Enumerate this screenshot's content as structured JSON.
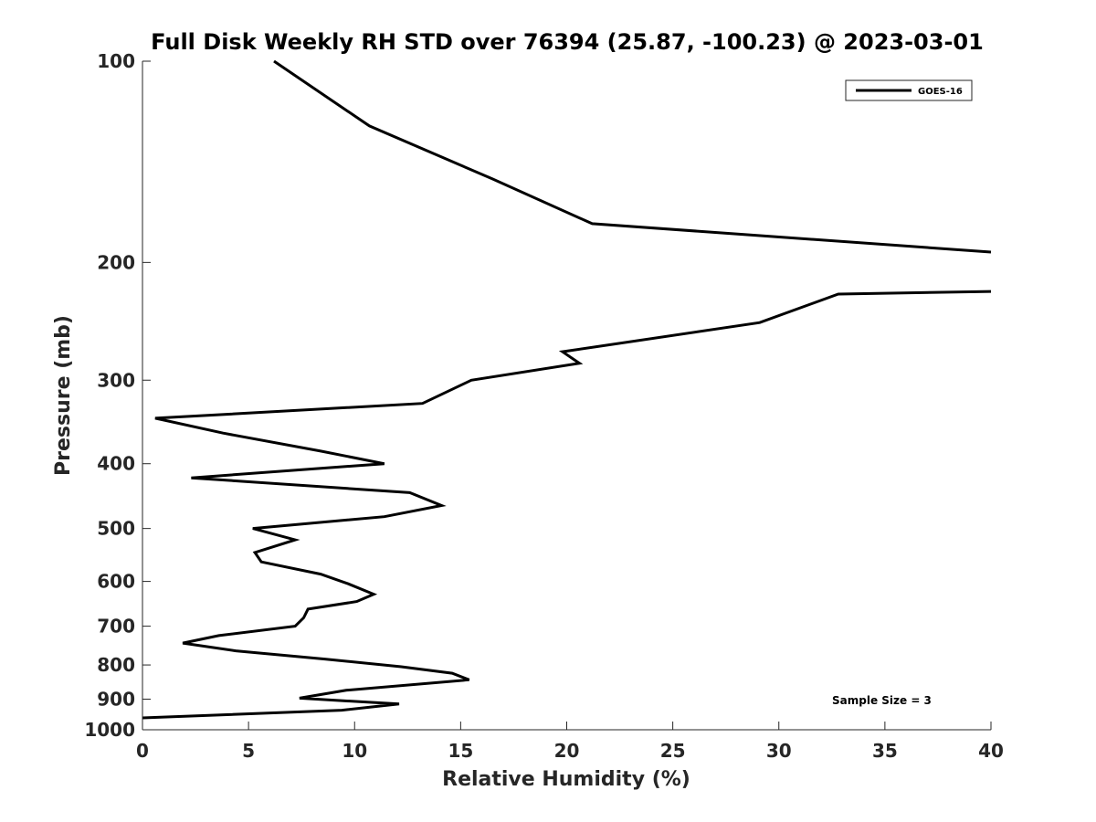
{
  "chart_data": {
    "type": "line",
    "title": "Full Disk Weekly RH STD over 76394 (25.87, -100.23) @ 2023-03-01",
    "xlabel": "Relative Humidity (%)",
    "ylabel": "Pressure (mb)",
    "xlim": [
      0,
      40
    ],
    "ylim": [
      100,
      1000
    ],
    "y_scale": "log",
    "y_reversed": true,
    "grid": false,
    "legend_position": "top-right",
    "x_ticks": [
      "0",
      "5",
      "10",
      "15",
      "20",
      "25",
      "30",
      "35",
      "40"
    ],
    "x_tick_values": [
      0,
      5,
      10,
      15,
      20,
      25,
      30,
      35,
      40
    ],
    "y_ticks": [
      "100",
      "200",
      "300",
      "400",
      "500",
      "600",
      "700",
      "800",
      "900",
      "1000"
    ],
    "y_tick_values": [
      100,
      200,
      300,
      400,
      500,
      600,
      700,
      800,
      900,
      1000
    ],
    "annotation": "Sample Size = 3",
    "series": [
      {
        "name": "GOES-16",
        "color": "#000000",
        "segments": [
          [
            {
              "x": 6.2,
              "p": 100
            },
            {
              "x": 10.7,
              "p": 125
            },
            {
              "x": 16.5,
              "p": 150
            },
            {
              "x": 21.2,
              "p": 175
            },
            {
              "x": 40.0,
              "p": 193
            }
          ],
          [
            {
              "x": 40.0,
              "p": 221
            },
            {
              "x": 32.8,
              "p": 223
            },
            {
              "x": 29.1,
              "p": 246
            },
            {
              "x": 19.8,
              "p": 272
            },
            {
              "x": 20.6,
              "p": 283
            },
            {
              "x": 15.5,
              "p": 300
            },
            {
              "x": 13.2,
              "p": 325
            },
            {
              "x": 0.6,
              "p": 342
            },
            {
              "x": 3.8,
              "p": 360
            },
            {
              "x": 8.4,
              "p": 383
            },
            {
              "x": 11.4,
              "p": 400
            },
            {
              "x": 2.3,
              "p": 420
            },
            {
              "x": 12.6,
              "p": 442
            },
            {
              "x": 14.1,
              "p": 462
            },
            {
              "x": 11.4,
              "p": 480
            },
            {
              "x": 5.2,
              "p": 500
            },
            {
              "x": 7.2,
              "p": 520
            },
            {
              "x": 5.3,
              "p": 543
            },
            {
              "x": 5.6,
              "p": 561
            },
            {
              "x": 8.4,
              "p": 585
            },
            {
              "x": 9.7,
              "p": 605
            },
            {
              "x": 10.9,
              "p": 627
            },
            {
              "x": 10.1,
              "p": 643
            },
            {
              "x": 7.8,
              "p": 660
            },
            {
              "x": 7.6,
              "p": 680
            },
            {
              "x": 7.2,
              "p": 700
            },
            {
              "x": 3.6,
              "p": 723
            },
            {
              "x": 1.9,
              "p": 742
            },
            {
              "x": 4.4,
              "p": 762
            },
            {
              "x": 8.6,
              "p": 784
            },
            {
              "x": 12.2,
              "p": 805
            },
            {
              "x": 14.6,
              "p": 823
            },
            {
              "x": 15.4,
              "p": 842
            },
            {
              "x": 9.6,
              "p": 873
            },
            {
              "x": 7.4,
              "p": 897
            },
            {
              "x": 12.1,
              "p": 915
            },
            {
              "x": 9.4,
              "p": 935
            },
            {
              "x": 0.0,
              "p": 960
            }
          ]
        ]
      }
    ]
  }
}
